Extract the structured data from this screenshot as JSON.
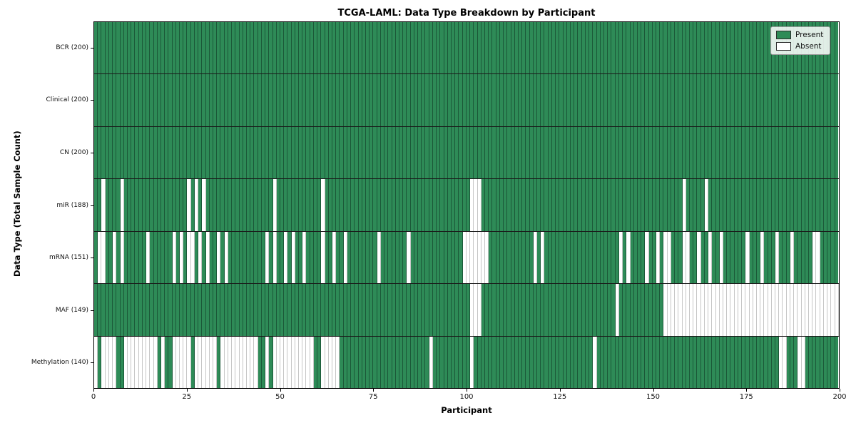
{
  "figure": {
    "background": "#ffffff"
  },
  "chart_data": {
    "type": "heatmap",
    "title": "TCGA-LAML: Data Type Breakdown by Participant",
    "xlabel": "Participant",
    "ylabel": "Data Type (Total Sample Count)",
    "n_participants": 200,
    "x_ticks": [
      0,
      25,
      50,
      75,
      100,
      125,
      150,
      175,
      200
    ],
    "present_color": "#2e8b57",
    "absent_color": "#ffffff",
    "grid_on": true,
    "legend_position": "upper right",
    "legend": [
      {
        "label": "Present",
        "color": "#2e8b57"
      },
      {
        "label": "Absent",
        "color": "#ffffff"
      }
    ],
    "rows": [
      {
        "label": "BCR (200)",
        "present_count": 200,
        "absent": []
      },
      {
        "label": "Clinical (200)",
        "present_count": 200,
        "absent": []
      },
      {
        "label": "CN (200)",
        "present_count": 200,
        "absent": []
      },
      {
        "label": "miR (188)",
        "present_count": 188,
        "absent": [
          2,
          7,
          25,
          27,
          29,
          48,
          61,
          101,
          102,
          103,
          158,
          164
        ]
      },
      {
        "label": "mRNA (151)",
        "present_count": 151,
        "absent": [
          1,
          2,
          5,
          7,
          14,
          21,
          23,
          25,
          26,
          28,
          30,
          33,
          35,
          46,
          48,
          51,
          53,
          56,
          61,
          64,
          67,
          76,
          84,
          99,
          100,
          101,
          102,
          103,
          104,
          105,
          118,
          120,
          141,
          143,
          148,
          151,
          153,
          154,
          158,
          159,
          162,
          165,
          168,
          175,
          179,
          183,
          187,
          193,
          194
        ]
      },
      {
        "label": "MAF (149)",
        "present_count": 149,
        "absent": [
          101,
          102,
          103,
          140,
          153,
          154,
          155,
          156,
          157,
          158,
          159,
          160,
          161,
          162,
          163,
          164,
          165,
          166,
          167,
          168,
          169,
          170,
          171,
          172,
          173,
          174,
          175,
          176,
          177,
          178,
          179,
          180,
          181,
          182,
          183,
          184,
          185,
          186,
          187,
          188,
          189,
          190,
          191,
          192,
          193,
          194,
          195,
          196,
          197,
          198,
          199
        ]
      },
      {
        "label": "Methylation (140)",
        "present_count": 140,
        "absent": [
          0,
          2,
          3,
          4,
          5,
          8,
          9,
          10,
          11,
          12,
          13,
          14,
          15,
          16,
          18,
          21,
          22,
          23,
          24,
          25,
          27,
          28,
          29,
          30,
          31,
          32,
          34,
          35,
          36,
          37,
          38,
          39,
          40,
          41,
          42,
          43,
          46,
          48,
          49,
          50,
          51,
          52,
          53,
          54,
          55,
          56,
          57,
          58,
          61,
          62,
          63,
          64,
          65,
          90,
          101,
          134,
          184,
          185,
          189,
          190
        ]
      }
    ]
  }
}
